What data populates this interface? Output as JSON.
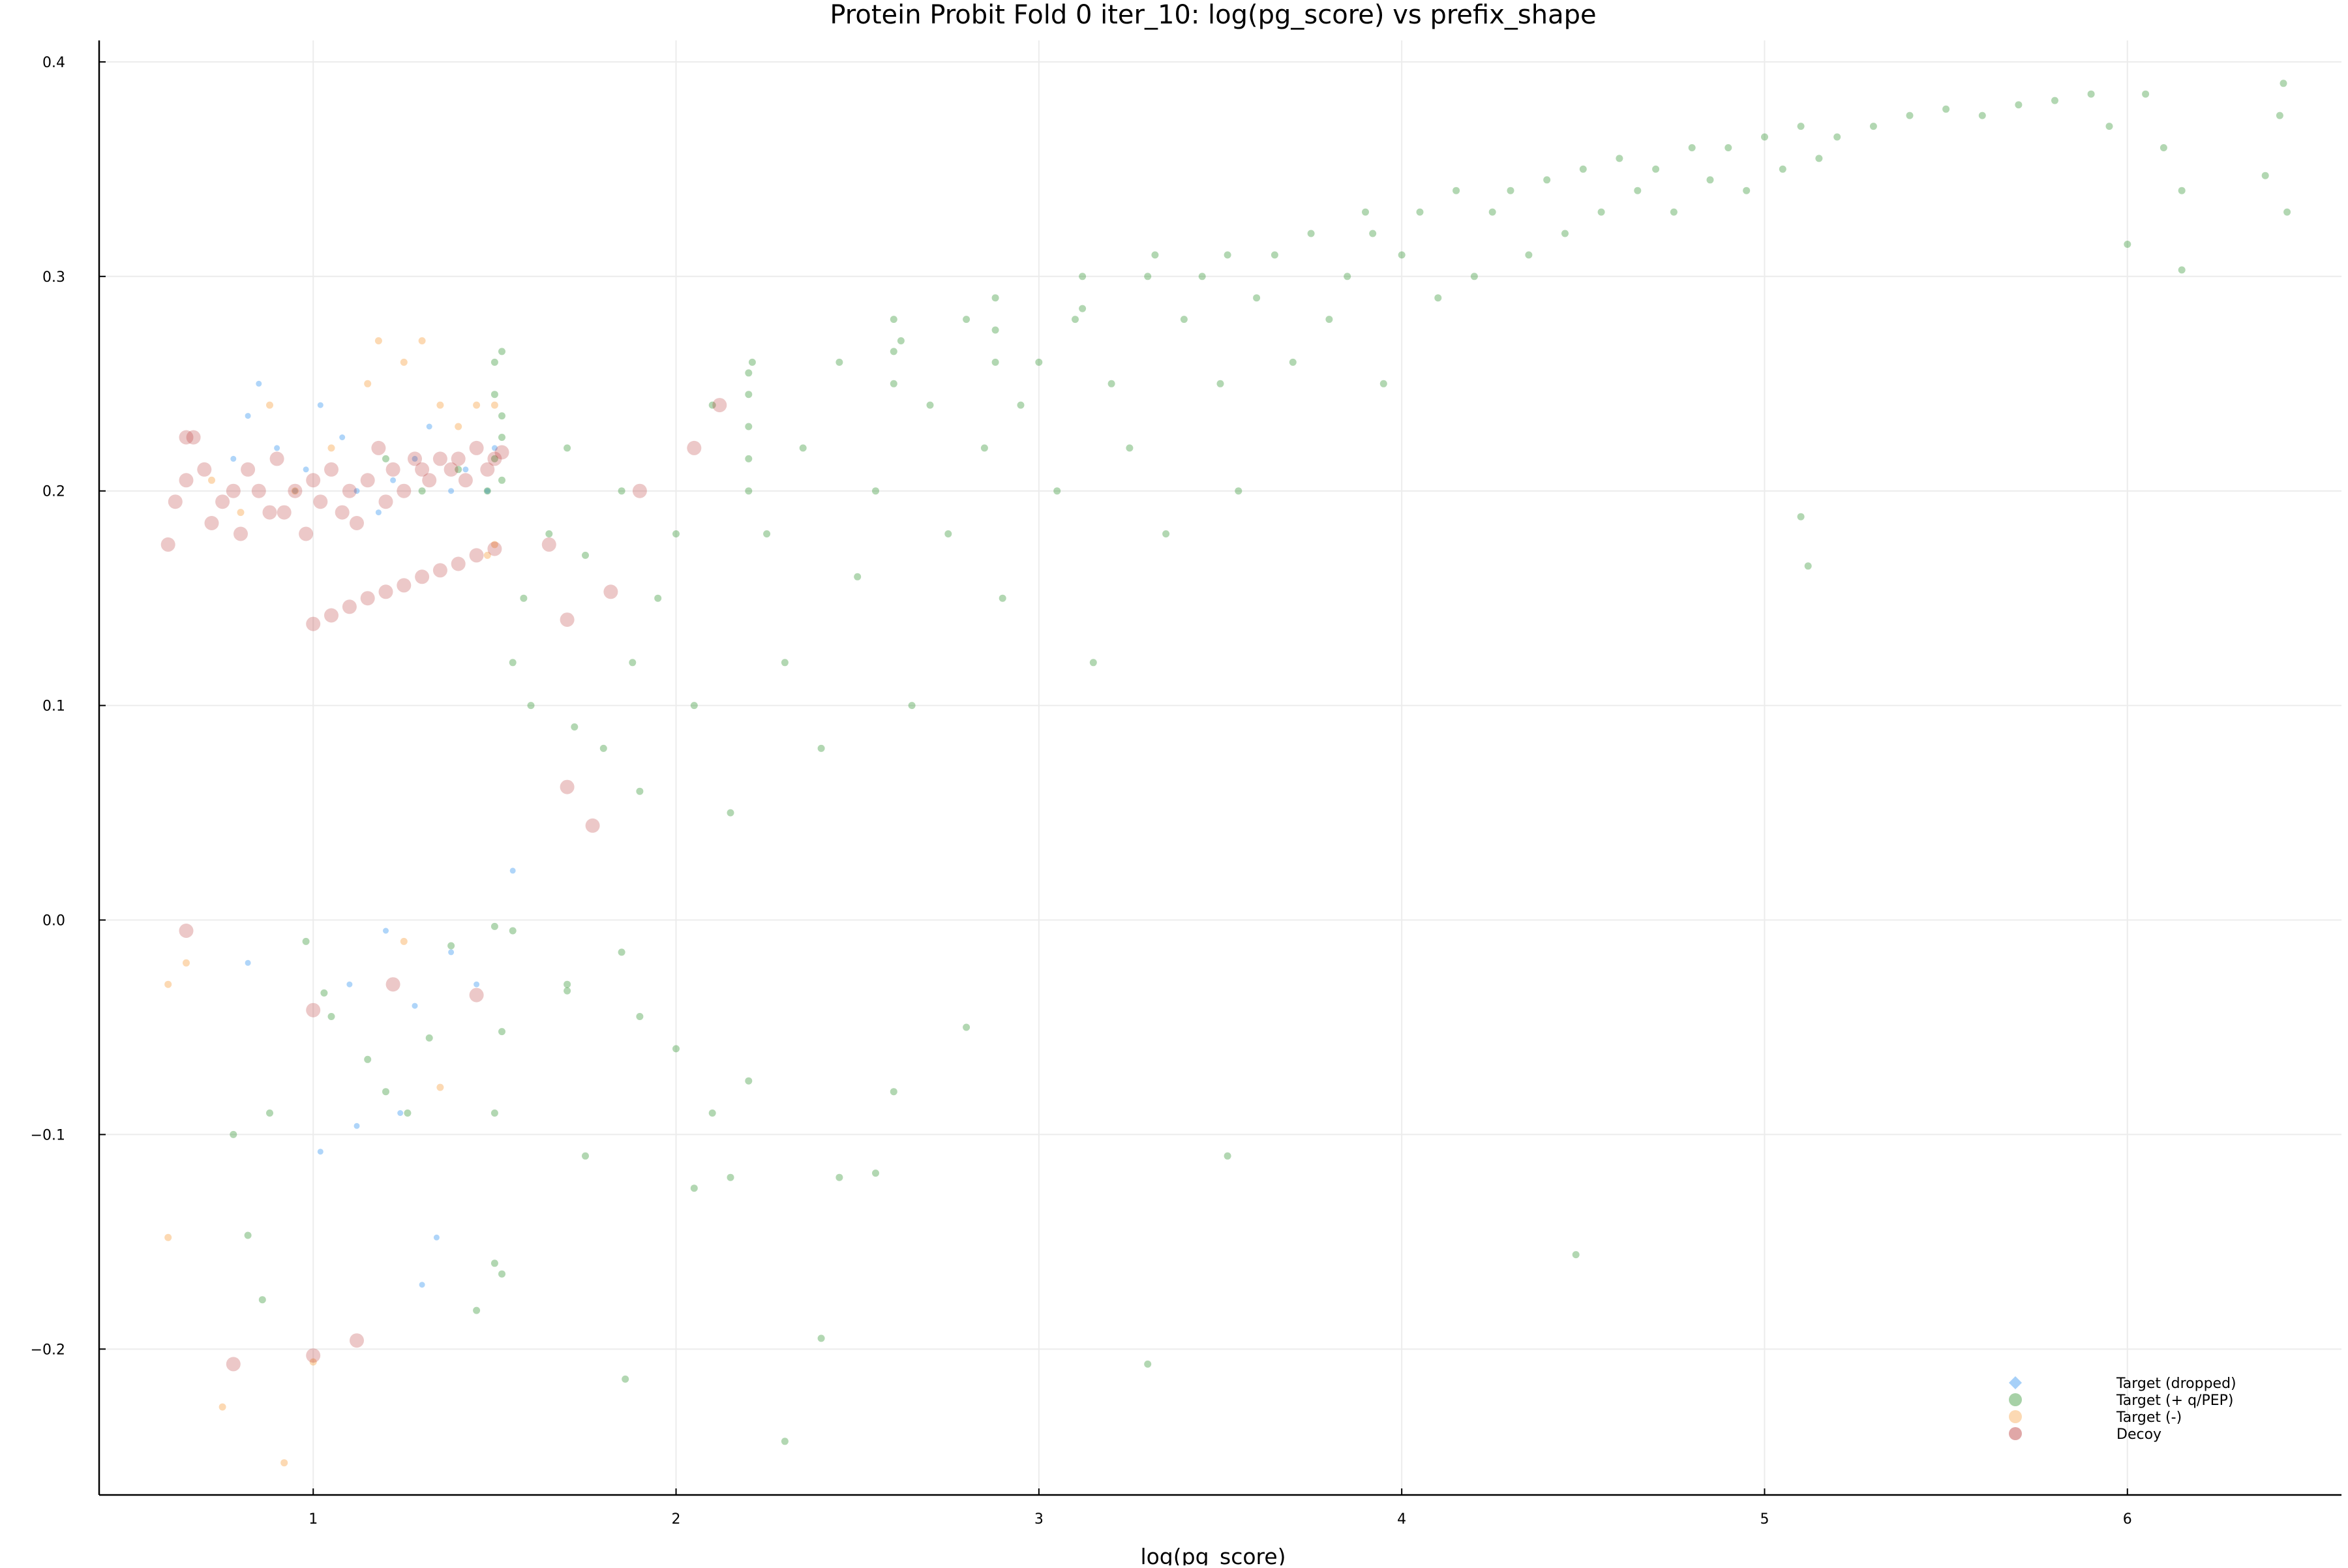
{
  "chart_data": {
    "type": "scatter",
    "title": "Protein Probit Fold 0 iter_10: log(pg_score) vs prefix_shape",
    "xlabel": "log(pg_score)",
    "ylabel": "",
    "xlim": [
      0.41,
      6.59
    ],
    "ylim": [
      -0.268,
      0.41
    ],
    "x_ticks": [
      1,
      2,
      3,
      4,
      5,
      6
    ],
    "x_tick_labels": [
      "1",
      "2",
      "3",
      "4",
      "5",
      "6"
    ],
    "y_ticks": [
      -0.2,
      -0.1,
      0.0,
      0.1,
      0.2,
      0.3,
      0.4
    ],
    "y_tick_labels": [
      "−0.2",
      "−0.1",
      "0.0",
      "0.1",
      "0.2",
      "0.3",
      "0.4"
    ],
    "grid": true,
    "legend_position": "bottom-right",
    "legend": [
      {
        "label": "Target (dropped)",
        "color": "#4ea1f2",
        "marker": "diamond"
      },
      {
        "label": "Target (+ q/PEP)",
        "color": "#228b22",
        "marker": "circle"
      },
      {
        "label": "Target (-)",
        "color": "#f7a040",
        "marker": "circle"
      },
      {
        "label": "Decoy",
        "color": "#b22222",
        "marker": "circle"
      }
    ],
    "series": [
      {
        "name": "Target (dropped)",
        "color": "#4ea1f2",
        "points": [
          [
            0.78,
            0.215
          ],
          [
            0.82,
            0.235
          ],
          [
            0.85,
            0.25
          ],
          [
            0.9,
            0.22
          ],
          [
            0.95,
            0.2
          ],
          [
            0.98,
            0.21
          ],
          [
            1.02,
            0.24
          ],
          [
            1.08,
            0.225
          ],
          [
            1.12,
            0.2
          ],
          [
            1.18,
            0.19
          ],
          [
            1.22,
            0.205
          ],
          [
            1.28,
            0.215
          ],
          [
            1.32,
            0.23
          ],
          [
            1.38,
            0.2
          ],
          [
            1.42,
            0.21
          ],
          [
            1.48,
            0.2
          ],
          [
            1.5,
            0.22
          ],
          [
            0.82,
            -0.02
          ],
          [
            1.02,
            -0.108
          ],
          [
            1.1,
            -0.03
          ],
          [
            1.12,
            -0.096
          ],
          [
            1.2,
            -0.005
          ],
          [
            1.24,
            -0.09
          ],
          [
            1.28,
            -0.04
          ],
          [
            1.3,
            -0.17
          ],
          [
            1.34,
            -0.148
          ],
          [
            1.38,
            -0.015
          ],
          [
            1.45,
            -0.03
          ],
          [
            1.55,
            0.023
          ]
        ]
      },
      {
        "name": "Target (+ q/PEP)",
        "color": "#228b22",
        "points": [
          [
            1.5,
            0.26
          ],
          [
            1.52,
            0.265
          ],
          [
            1.5,
            0.245
          ],
          [
            1.52,
            0.235
          ],
          [
            1.5,
            0.215
          ],
          [
            1.52,
            0.225
          ],
          [
            1.52,
            0.205
          ],
          [
            1.48,
            0.2
          ],
          [
            1.4,
            0.21
          ],
          [
            1.3,
            0.2
          ],
          [
            1.2,
            0.215
          ],
          [
            1.55,
            0.12
          ],
          [
            1.58,
            0.15
          ],
          [
            1.6,
            0.1
          ],
          [
            1.65,
            0.18
          ],
          [
            1.7,
            0.22
          ],
          [
            1.72,
            0.09
          ],
          [
            1.75,
            0.17
          ],
          [
            1.8,
            0.08
          ],
          [
            1.85,
            0.2
          ],
          [
            1.88,
            0.12
          ],
          [
            1.9,
            0.06
          ],
          [
            1.95,
            0.15
          ],
          [
            2.0,
            0.18
          ],
          [
            2.05,
            0.1
          ],
          [
            2.1,
            0.24
          ],
          [
            2.15,
            0.05
          ],
          [
            2.2,
            0.2
          ],
          [
            2.2,
            0.255
          ],
          [
            2.2,
            0.245
          ],
          [
            2.2,
            0.23
          ],
          [
            2.2,
            0.215
          ],
          [
            2.21,
            0.26
          ],
          [
            2.25,
            0.18
          ],
          [
            2.3,
            0.12
          ],
          [
            2.35,
            0.22
          ],
          [
            2.4,
            0.08
          ],
          [
            2.45,
            0.26
          ],
          [
            2.5,
            0.16
          ],
          [
            2.55,
            0.2
          ],
          [
            2.6,
            0.28
          ],
          [
            2.6,
            0.265
          ],
          [
            2.6,
            0.25
          ],
          [
            2.62,
            0.27
          ],
          [
            2.65,
            0.1
          ],
          [
            2.7,
            0.24
          ],
          [
            2.75,
            0.18
          ],
          [
            2.8,
            0.28
          ],
          [
            2.85,
            0.22
          ],
          [
            2.88,
            0.29
          ],
          [
            2.88,
            0.275
          ],
          [
            2.88,
            0.26
          ],
          [
            2.9,
            0.15
          ],
          [
            2.95,
            0.24
          ],
          [
            3.0,
            0.26
          ],
          [
            3.05,
            0.2
          ],
          [
            3.1,
            0.28
          ],
          [
            3.12,
            0.3
          ],
          [
            3.12,
            0.285
          ],
          [
            3.15,
            0.12
          ],
          [
            3.2,
            0.25
          ],
          [
            3.25,
            0.22
          ],
          [
            3.3,
            0.3
          ],
          [
            3.32,
            0.31
          ],
          [
            3.35,
            0.18
          ],
          [
            3.4,
            0.28
          ],
          [
            3.45,
            0.3
          ],
          [
            3.5,
            0.25
          ],
          [
            3.52,
            0.31
          ],
          [
            3.55,
            0.2
          ],
          [
            3.6,
            0.29
          ],
          [
            3.65,
            0.31
          ],
          [
            3.7,
            0.26
          ],
          [
            3.75,
            0.32
          ],
          [
            3.8,
            0.28
          ],
          [
            3.85,
            0.3
          ],
          [
            3.9,
            0.33
          ],
          [
            3.92,
            0.32
          ],
          [
            3.95,
            0.25
          ],
          [
            4.0,
            0.31
          ],
          [
            4.05,
            0.33
          ],
          [
            4.1,
            0.29
          ],
          [
            4.15,
            0.34
          ],
          [
            4.2,
            0.3
          ],
          [
            4.25,
            0.33
          ],
          [
            4.3,
            0.34
          ],
          [
            4.35,
            0.31
          ],
          [
            4.4,
            0.345
          ],
          [
            4.45,
            0.32
          ],
          [
            4.5,
            0.35
          ],
          [
            4.55,
            0.33
          ],
          [
            4.6,
            0.355
          ],
          [
            4.65,
            0.34
          ],
          [
            4.7,
            0.35
          ],
          [
            4.75,
            0.33
          ],
          [
            4.8,
            0.36
          ],
          [
            4.85,
            0.345
          ],
          [
            4.9,
            0.36
          ],
          [
            4.95,
            0.34
          ],
          [
            5.0,
            0.365
          ],
          [
            5.05,
            0.35
          ],
          [
            5.1,
            0.37
          ],
          [
            5.15,
            0.355
          ],
          [
            5.2,
            0.365
          ],
          [
            5.3,
            0.37
          ],
          [
            5.4,
            0.375
          ],
          [
            5.5,
            0.378
          ],
          [
            5.6,
            0.375
          ],
          [
            5.7,
            0.38
          ],
          [
            5.8,
            0.382
          ],
          [
            5.9,
            0.385
          ],
          [
            5.95,
            0.37
          ],
          [
            6.05,
            0.385
          ],
          [
            6.1,
            0.36
          ],
          [
            6.15,
            0.34
          ],
          [
            6.38,
            0.347
          ],
          [
            6.42,
            0.375
          ],
          [
            6.43,
            0.39
          ],
          [
            6.44,
            0.33
          ],
          [
            6.0,
            0.315
          ],
          [
            6.15,
            0.303
          ],
          [
            5.1,
            0.188
          ],
          [
            5.12,
            0.165
          ],
          [
            1.55,
            -0.005
          ],
          [
            1.7,
            -0.033
          ],
          [
            1.75,
            -0.11
          ],
          [
            1.85,
            -0.015
          ],
          [
            1.9,
            -0.045
          ],
          [
            2.0,
            -0.06
          ],
          [
            2.05,
            -0.125
          ],
          [
            2.1,
            -0.09
          ],
          [
            2.15,
            -0.12
          ],
          [
            2.2,
            -0.075
          ],
          [
            2.3,
            -0.243
          ],
          [
            2.4,
            -0.195
          ],
          [
            2.45,
            -0.12
          ],
          [
            2.55,
            -0.118
          ],
          [
            2.6,
            -0.08
          ],
          [
            2.8,
            -0.05
          ],
          [
            3.3,
            -0.207
          ],
          [
            3.52,
            -0.11
          ],
          [
            4.48,
            -0.156
          ],
          [
            1.86,
            -0.214
          ],
          [
            1.7,
            -0.03
          ],
          [
            0.78,
            -0.1
          ],
          [
            0.82,
            -0.147
          ],
          [
            0.86,
            -0.177
          ],
          [
            0.88,
            -0.09
          ],
          [
            0.98,
            -0.01
          ],
          [
            1.03,
            -0.034
          ],
          [
            1.05,
            -0.045
          ],
          [
            1.15,
            -0.065
          ],
          [
            1.2,
            -0.08
          ],
          [
            1.26,
            -0.09
          ],
          [
            1.32,
            -0.055
          ],
          [
            1.38,
            -0.012
          ],
          [
            1.45,
            -0.182
          ],
          [
            1.5,
            -0.16
          ],
          [
            1.52,
            -0.165
          ],
          [
            1.52,
            -0.052
          ],
          [
            1.5,
            -0.09
          ],
          [
            1.5,
            -0.003
          ]
        ]
      },
      {
        "name": "Target (-)",
        "color": "#f7a040",
        "points": [
          [
            0.72,
            0.205
          ],
          [
            0.8,
            0.19
          ],
          [
            0.88,
            0.24
          ],
          [
            0.95,
            0.2
          ],
          [
            1.05,
            0.22
          ],
          [
            1.15,
            0.25
          ],
          [
            1.18,
            0.27
          ],
          [
            1.25,
            0.26
          ],
          [
            1.3,
            0.27
          ],
          [
            1.35,
            0.24
          ],
          [
            1.4,
            0.23
          ],
          [
            1.45,
            0.24
          ],
          [
            1.5,
            0.24
          ],
          [
            1.5,
            0.175
          ],
          [
            1.48,
            0.17
          ],
          [
            0.6,
            -0.03
          ],
          [
            0.65,
            -0.02
          ],
          [
            0.6,
            -0.148
          ],
          [
            0.75,
            -0.227
          ],
          [
            0.92,
            -0.253
          ],
          [
            1.0,
            -0.206
          ],
          [
            1.35,
            -0.078
          ],
          [
            1.25,
            -0.01
          ]
        ]
      },
      {
        "name": "Decoy",
        "color": "#b22222",
        "points": [
          [
            0.6,
            0.175
          ],
          [
            0.62,
            0.195
          ],
          [
            0.65,
            0.205
          ],
          [
            0.67,
            0.225
          ],
          [
            0.7,
            0.21
          ],
          [
            0.72,
            0.185
          ],
          [
            0.75,
            0.195
          ],
          [
            0.78,
            0.2
          ],
          [
            0.8,
            0.18
          ],
          [
            0.82,
            0.21
          ],
          [
            0.85,
            0.2
          ],
          [
            0.88,
            0.19
          ],
          [
            0.9,
            0.215
          ],
          [
            0.92,
            0.19
          ],
          [
            0.95,
            0.2
          ],
          [
            0.98,
            0.18
          ],
          [
            1.0,
            0.205
          ],
          [
            1.02,
            0.195
          ],
          [
            1.05,
            0.21
          ],
          [
            1.08,
            0.19
          ],
          [
            1.1,
            0.2
          ],
          [
            1.12,
            0.185
          ],
          [
            1.15,
            0.205
          ],
          [
            1.18,
            0.22
          ],
          [
            1.2,
            0.195
          ],
          [
            1.22,
            0.21
          ],
          [
            1.25,
            0.2
          ],
          [
            1.28,
            0.215
          ],
          [
            1.3,
            0.21
          ],
          [
            1.32,
            0.205
          ],
          [
            1.35,
            0.215
          ],
          [
            1.38,
            0.21
          ],
          [
            1.4,
            0.215
          ],
          [
            1.42,
            0.205
          ],
          [
            1.45,
            0.22
          ],
          [
            1.48,
            0.21
          ],
          [
            1.5,
            0.215
          ],
          [
            1.52,
            0.218
          ],
          [
            1.0,
            0.138
          ],
          [
            1.05,
            0.142
          ],
          [
            1.1,
            0.146
          ],
          [
            1.15,
            0.15
          ],
          [
            1.2,
            0.153
          ],
          [
            1.25,
            0.156
          ],
          [
            1.3,
            0.16
          ],
          [
            1.35,
            0.163
          ],
          [
            1.4,
            0.166
          ],
          [
            1.45,
            0.17
          ],
          [
            1.5,
            0.173
          ],
          [
            1.65,
            0.175
          ],
          [
            1.7,
            0.14
          ],
          [
            1.82,
            0.153
          ],
          [
            1.9,
            0.2
          ],
          [
            2.05,
            0.22
          ],
          [
            2.12,
            0.24
          ],
          [
            1.7,
            0.062
          ],
          [
            1.77,
            0.044
          ],
          [
            0.65,
            -0.005
          ],
          [
            1.0,
            -0.042
          ],
          [
            1.22,
            -0.03
          ],
          [
            1.45,
            -0.035
          ],
          [
            0.78,
            -0.207
          ],
          [
            1.0,
            -0.203
          ],
          [
            1.12,
            -0.196
          ],
          [
            0.65,
            0.225
          ]
        ]
      }
    ]
  }
}
